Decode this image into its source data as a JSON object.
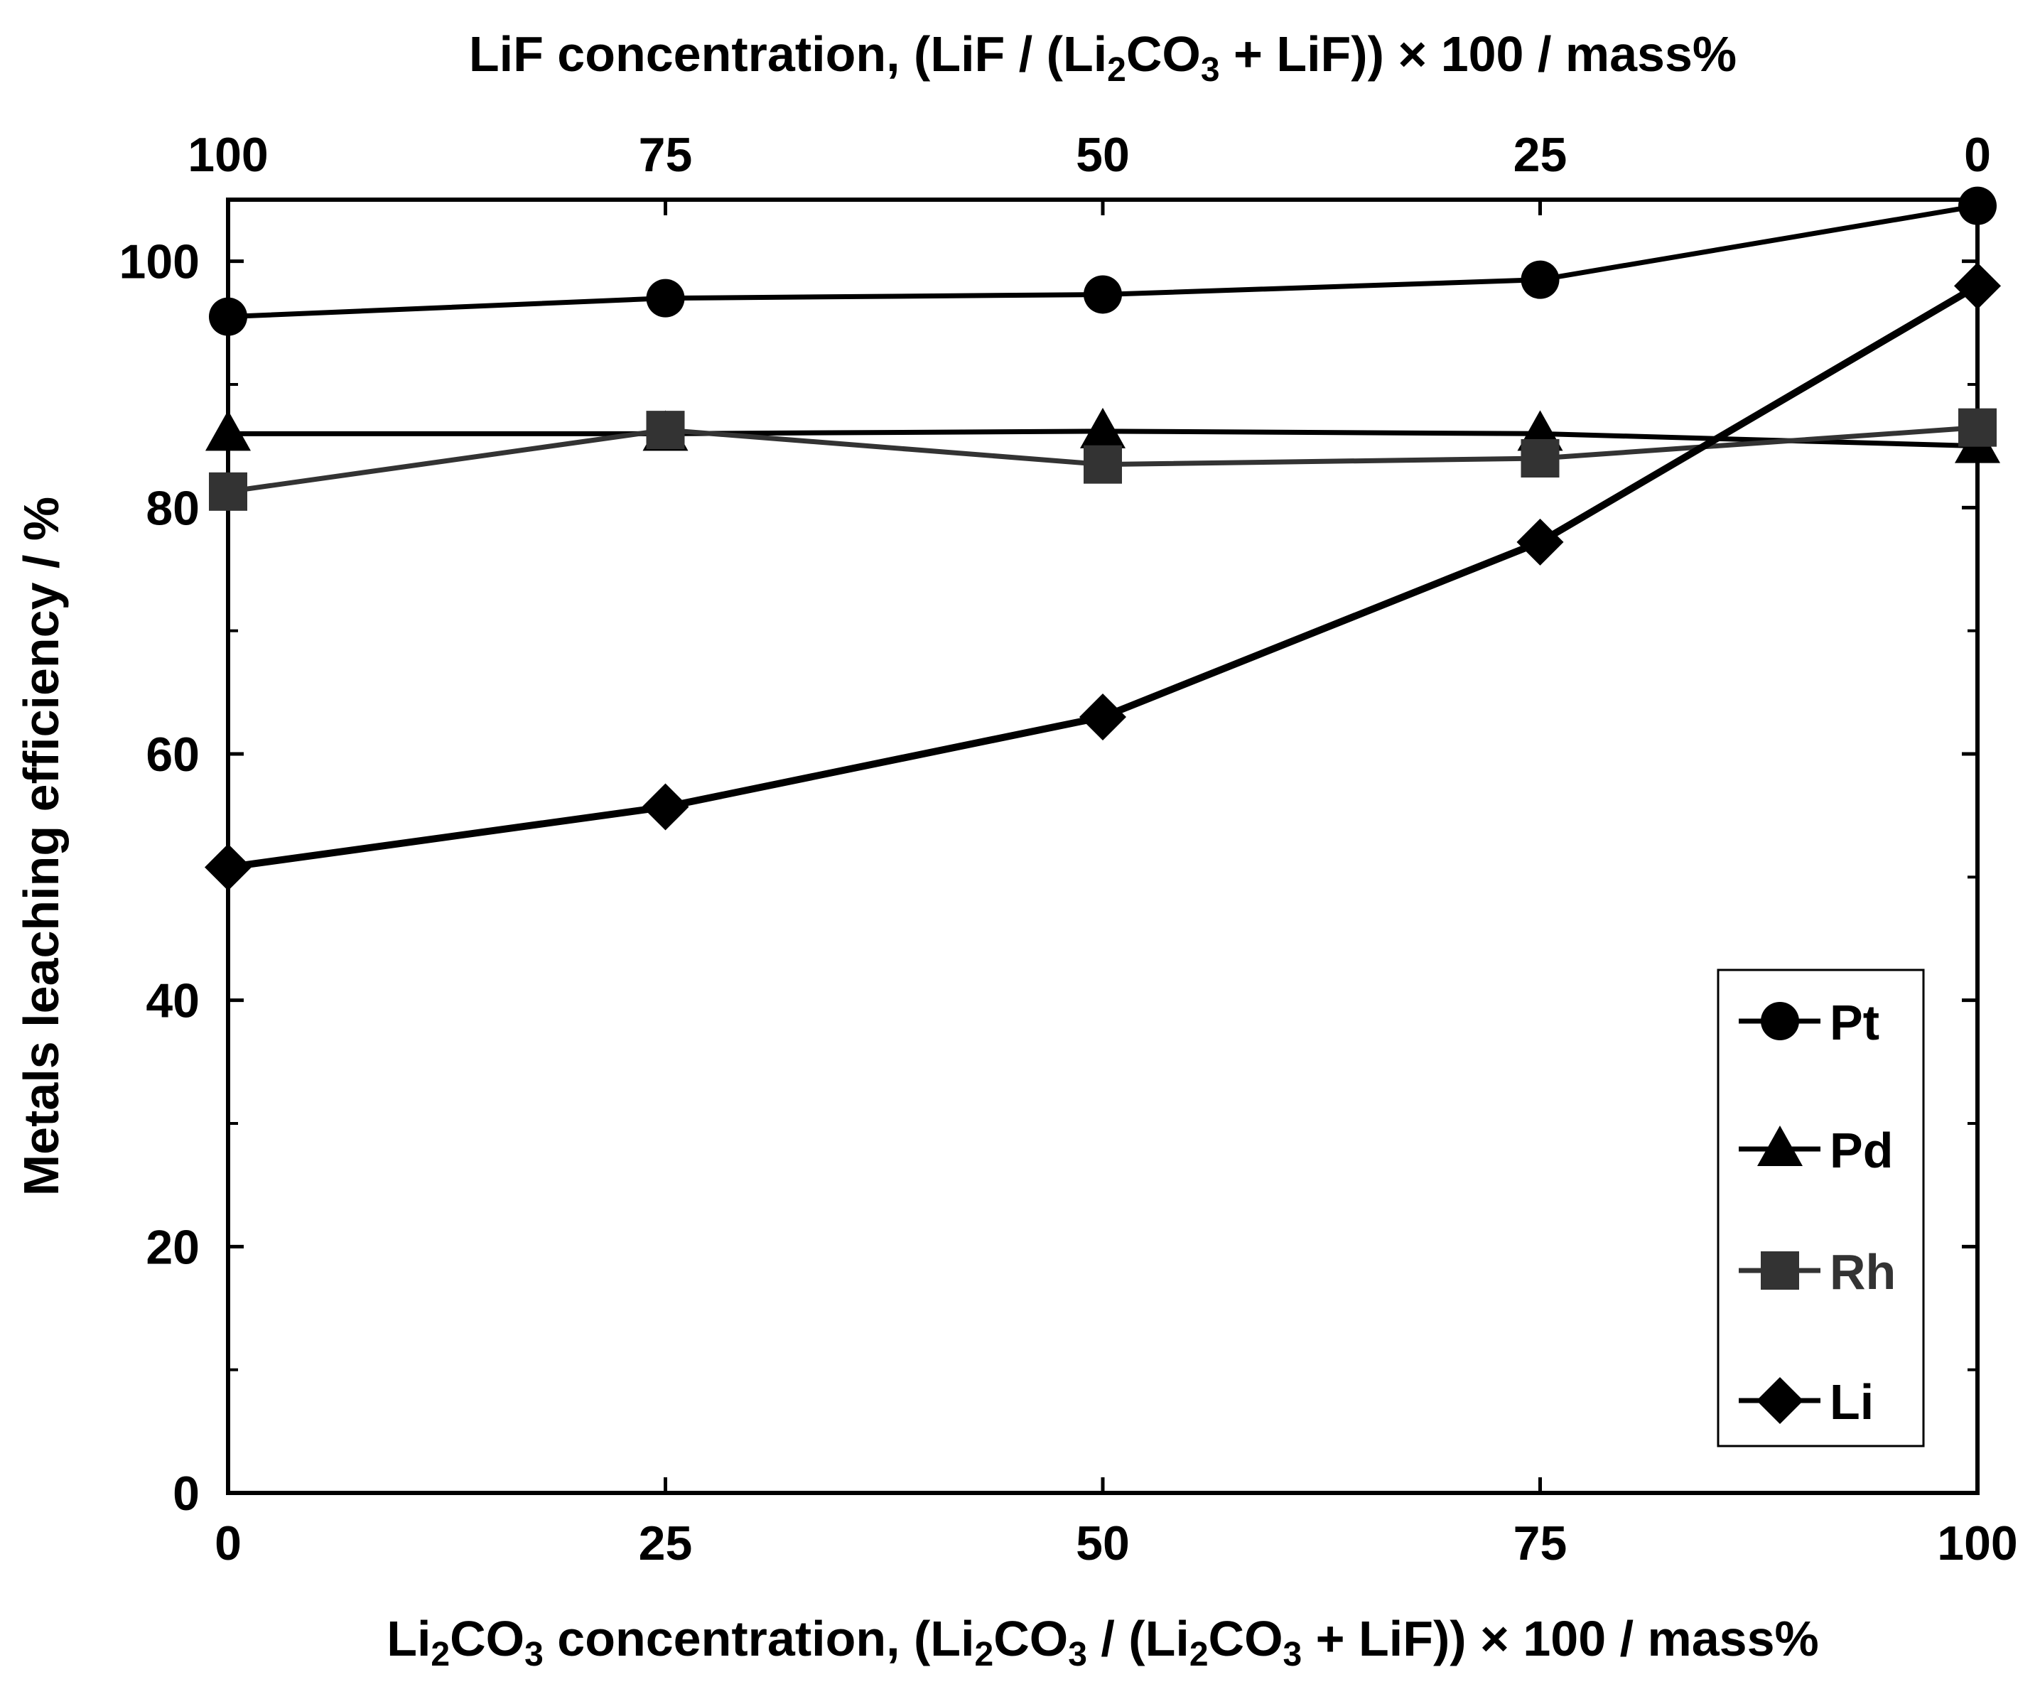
{
  "chart_data": {
    "type": "line",
    "top_axis": {
      "label_parts": [
        {
          "text": "LiF concentration, (LiF / (Li",
          "sub": false
        },
        {
          "text": "2",
          "sub": true
        },
        {
          "text": "CO",
          "sub": false
        },
        {
          "text": "3",
          "sub": true
        },
        {
          "text": " + LiF))  × 100 / mass%",
          "sub": false
        }
      ],
      "ticks": [
        100,
        75,
        50,
        25,
        0
      ],
      "tick_labels": [
        "100",
        "75",
        "50",
        "25",
        "0"
      ]
    },
    "xlabel_parts": [
      {
        "text": "Li",
        "sub": false
      },
      {
        "text": "2",
        "sub": true
      },
      {
        "text": "CO",
        "sub": false
      },
      {
        "text": "3",
        "sub": true
      },
      {
        "text": " concentration, (Li",
        "sub": false
      },
      {
        "text": "2",
        "sub": true
      },
      {
        "text": "CO",
        "sub": false
      },
      {
        "text": "3",
        "sub": true
      },
      {
        "text": " / (Li",
        "sub": false
      },
      {
        "text": "2",
        "sub": true
      },
      {
        "text": "CO",
        "sub": false
      },
      {
        "text": "3",
        "sub": true
      },
      {
        "text": " + LiF))  × 100 / mass%",
        "sub": false
      }
    ],
    "ylabel": "Metals leaching efficiency / %",
    "x": [
      0,
      25,
      50,
      75,
      100
    ],
    "xlim": [
      0,
      100
    ],
    "ylim": [
      0,
      105
    ],
    "x_ticks": [
      0,
      25,
      50,
      75,
      100
    ],
    "x_tick_labels": [
      "0",
      "25",
      "50",
      "75",
      "100"
    ],
    "y_ticks": [
      0,
      20,
      40,
      60,
      80,
      100
    ],
    "y_tick_labels": [
      "0",
      "20",
      "40",
      "60",
      "80",
      "100"
    ],
    "y_minor_ticks": [
      10,
      30,
      50,
      70,
      90
    ],
    "legend_position": "bottom-right",
    "series": [
      {
        "name": "Pt",
        "marker": "circle",
        "color": "#000000",
        "values": [
          95.5,
          97.0,
          97.3,
          98.5,
          104.5
        ]
      },
      {
        "name": "Pd",
        "marker": "triangle",
        "color": "#000000",
        "values": [
          86.0,
          86.0,
          86.2,
          86.0,
          85.0
        ]
      },
      {
        "name": "Rh",
        "marker": "square",
        "color": "#333333",
        "values": [
          81.3,
          86.3,
          83.5,
          84.0,
          86.5
        ]
      },
      {
        "name": "Li",
        "marker": "diamond",
        "color": "#000000",
        "values": [
          50.8,
          55.7,
          63.0,
          77.2,
          98.0
        ]
      }
    ]
  }
}
